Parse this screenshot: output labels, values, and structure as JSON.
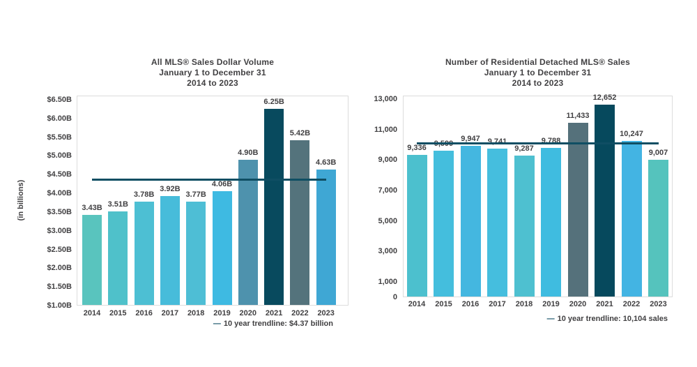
{
  "colors": {
    "background": "#ffffff",
    "text": "#414042",
    "axis_border": "#dcdcdc",
    "trendline": "#0f4e63"
  },
  "chart_data": [
    {
      "type": "bar",
      "title": "All MLS® Sales Dollar Volume January 1 to December 31 2014 to 2023",
      "title_lines": [
        "All MLS® Sales Dollar Volume",
        "January 1 to December 31",
        "2014 to 2023"
      ],
      "ylabel": "(in billions)",
      "xlabel": "",
      "categories": [
        "2014",
        "2015",
        "2016",
        "2017",
        "2018",
        "2019",
        "2020",
        "2021",
        "2022",
        "2023"
      ],
      "values": [
        3.43,
        3.51,
        3.78,
        3.92,
        3.77,
        4.06,
        4.9,
        6.25,
        5.42,
        4.63
      ],
      "bar_labels": [
        "3.43B",
        "3.51B",
        "3.78B",
        "3.92B",
        "3.77B",
        "4.06B",
        "4.90B",
        "6.25B",
        "5.42B",
        "4.63B"
      ],
      "bar_colors": [
        "#59c4be",
        "#4fc1ca",
        "#4dbfd3",
        "#47bcda",
        "#4ebed5",
        "#3ebae2",
        "#4e92ad",
        "#084a5e",
        "#54737c",
        "#3fa7d4"
      ],
      "ylim": [
        1.0,
        6.5
      ],
      "y_ticks": [
        {
          "label": "$6.50B",
          "value": 6.5
        },
        {
          "label": "$6.00B",
          "value": 6.0
        },
        {
          "label": "$5.50B",
          "value": 5.5
        },
        {
          "label": "$5.00B",
          "value": 5.0
        },
        {
          "label": "$4.50B",
          "value": 4.5
        },
        {
          "label": "$4.00B",
          "value": 4.0
        },
        {
          "label": "$3.50B",
          "value": 3.5
        },
        {
          "label": "$3.00B",
          "value": 3.0
        },
        {
          "label": "$2.50B",
          "value": 2.5
        },
        {
          "label": "$2.00B",
          "value": 2.0
        },
        {
          "label": "$1.50B",
          "value": 1.5
        },
        {
          "label": "$1.00B",
          "value": 1.0
        }
      ],
      "grid": false,
      "legend_position": "bottom-right",
      "trendline": {
        "value": 4.37,
        "color": "#0f4e63"
      },
      "legend_dash": "—",
      "legend_text": "10 year trendline: $4.37 billion"
    },
    {
      "type": "bar",
      "title": "Number of Residential Detached MLS® Sales January 1 to December 31 2014 to 2023",
      "title_lines": [
        "Number of Residential Detached MLS® Sales",
        "January 1 to December 31",
        "2014 to 2023"
      ],
      "ylabel": "",
      "xlabel": "",
      "categories": [
        "2014",
        "2015",
        "2016",
        "2017",
        "2018",
        "2019",
        "2020",
        "2021",
        "2022",
        "2023"
      ],
      "values": [
        9336,
        9599,
        9947,
        9741,
        9287,
        9788,
        11433,
        12652,
        10247,
        9007
      ],
      "bar_labels": [
        "9,336",
        "9,599",
        "9,947",
        "9,741",
        "9,287",
        "9,788",
        "11,433",
        "12,652",
        "10,247",
        "9,007"
      ],
      "bar_colors": [
        "#4cc0ce",
        "#44bedd",
        "#44b7e0",
        "#45bede",
        "#4ec0d0",
        "#3fbce0",
        "#55717b",
        "#06495d",
        "#43b4e3",
        "#55c3bd"
      ],
      "ylim": [
        0,
        13000
      ],
      "y_ticks": [
        {
          "label": "13,000",
          "value": 13000
        },
        {
          "label": "11,000",
          "value": 11000
        },
        {
          "label": "9,000",
          "value": 9000
        },
        {
          "label": "7,000",
          "value": 7000
        },
        {
          "label": "5,000",
          "value": 5000
        },
        {
          "label": "3,000",
          "value": 3000
        },
        {
          "label": "1,000",
          "value": 1000
        },
        {
          "label": "0",
          "value": 0
        }
      ],
      "grid": false,
      "legend_position": "bottom-right",
      "trendline": {
        "value": 10104,
        "color": "#0f4e63"
      },
      "legend_dash": "—",
      "legend_text": "10 year trendline: 10,104 sales"
    }
  ]
}
